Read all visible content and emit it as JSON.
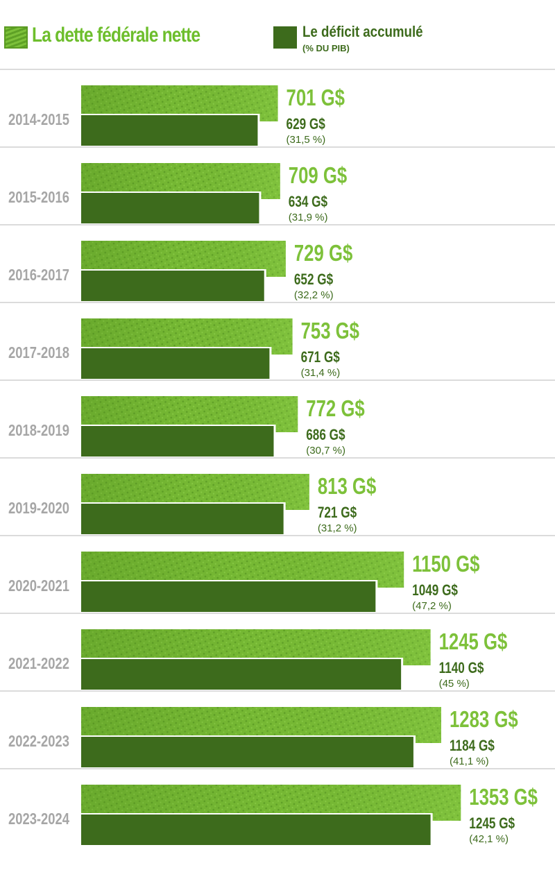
{
  "legend": {
    "debt_label": "La dette fédérale nette",
    "deficit_label": "Le déficit accumulé",
    "deficit_sub": "(% DU PIB)"
  },
  "colors": {
    "debt": "#7dc13a",
    "debt_dark": "#5c9e23",
    "deficit": "#3d6b1c",
    "year_text": "#a6a6a6",
    "divider": "#cfcfcf"
  },
  "chart_data": {
    "type": "bar",
    "orientation": "horizontal",
    "categories": [
      "2014-2015",
      "2015-2016",
      "2016-2017",
      "2017-2018",
      "2018-2019",
      "2019-2020",
      "2020-2021",
      "2021-2022",
      "2022-2023",
      "2023-2024"
    ],
    "series": [
      {
        "name": "La dette fédérale nette",
        "values": [
          701,
          709,
          729,
          753,
          772,
          813,
          1150,
          1245,
          1283,
          1353
        ],
        "labels": [
          "701 G$",
          "709 G$",
          "729 G$",
          "753 G$",
          "772 G$",
          "813 G$",
          "1150 G$",
          "1245 G$",
          "1283 G$",
          "1353 G$"
        ]
      },
      {
        "name": "Le déficit accumulé",
        "values": [
          629,
          634,
          652,
          671,
          686,
          721,
          1049,
          1140,
          1184,
          1245
        ],
        "labels": [
          "629 G$",
          "634 G$",
          "652 G$",
          "671 G$",
          "686 G$",
          "721 G$",
          "1049 G$",
          "1140 G$",
          "1184 G$",
          "1245 G$"
        ]
      }
    ],
    "pib_pct_labels": [
      "(31,5 %)",
      "(31,9 %)",
      "(32,2 %)",
      "(31,4 %)",
      "(30,7 %)",
      "(31,2 %)",
      "(47,2 %)",
      "(45 %)",
      "(41,1 %)",
      "(42,1 %)"
    ],
    "pib_pct": [
      31.5,
      31.9,
      32.2,
      31.4,
      30.7,
      31.2,
      47.2,
      45,
      41.1,
      42.1
    ],
    "unit": "G$"
  }
}
